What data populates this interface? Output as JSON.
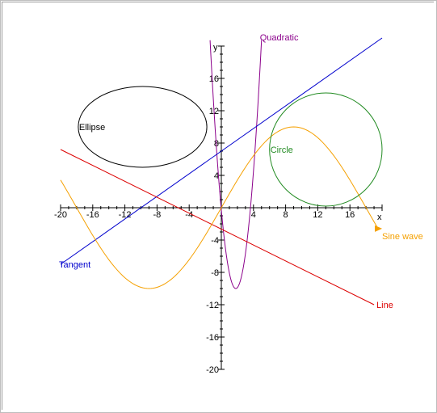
{
  "chart_data": {
    "type": "line",
    "xlabel": "x",
    "ylabel": "y",
    "xlim": [
      -20,
      20
    ],
    "ylim": [
      -20,
      20
    ],
    "xticks": [
      -20,
      -16,
      -12,
      -8,
      -4,
      4,
      8,
      12,
      16
    ],
    "yticks": [
      -20,
      -16,
      -12,
      -8,
      -4,
      4,
      8,
      12,
      16
    ],
    "grid": false,
    "legend": "none",
    "series": [
      {
        "name": "Quadratic",
        "kind": "function",
        "label_anchor": "top",
        "color": "#8b008b",
        "x": [
          -2.0,
          -1.0,
          0.0,
          1.0,
          2.0,
          3.0,
          4.0,
          5.0
        ],
        "y": [
          19.0,
          8.0,
          0.0,
          -7.0,
          -10.0,
          -5.0,
          8.0,
          21.0
        ]
      },
      {
        "name": "Tangent",
        "kind": "function",
        "label_anchor": "start",
        "color": "#0000cd",
        "x": [
          -20,
          20
        ],
        "y": [
          -7.0,
          21.0
        ]
      },
      {
        "name": "Line",
        "kind": "function",
        "label_anchor": "end",
        "color": "#dc0000",
        "x": [
          -20,
          19
        ],
        "y": [
          7.2,
          -12.0
        ]
      },
      {
        "name": "Sine wave",
        "kind": "function",
        "label_anchor": "end",
        "color": "#f5a000",
        "x": [
          -20.0,
          -9.0,
          9.0,
          19.7
        ],
        "y": [
          3.5,
          -10.0,
          10.0,
          -3.5
        ]
      },
      {
        "name": "Circle",
        "kind": "ellipse",
        "label_anchor": "inside-left",
        "color": "#228b22",
        "center": [
          13.0,
          7.2
        ],
        "radii": [
          7.0,
          7.0
        ]
      },
      {
        "name": "Ellipse",
        "kind": "ellipse",
        "label_anchor": "inside-left",
        "color": "#000000",
        "center": [
          -9.8,
          10.0
        ],
        "radii": [
          8.0,
          5.0
        ]
      }
    ]
  }
}
